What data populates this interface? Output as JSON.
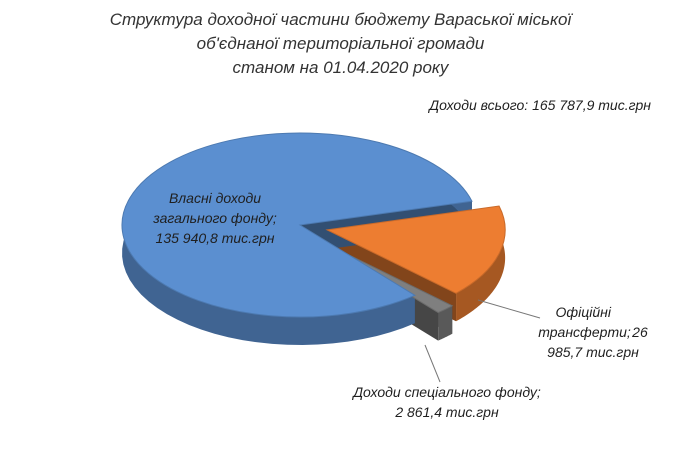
{
  "chart_data": {
    "type": "pie",
    "title": [
      "Структура доходної частини бюджету Вараської міської",
      "об'єднаної територіальної громади",
      "станом на 01.04.2020 року"
    ],
    "subtitle": "Доходи всього: 165 787,9 тис.грн",
    "categories": [
      "Власні доходи загального фонду;",
      "Офіційні трансферти;",
      "Доходи спеціального фонду;"
    ],
    "values": [
      135940.8,
      26985.7,
      2861.4
    ],
    "value_labels": [
      "135 940,8 тис.грн",
      "26 985,7 тис.грн",
      "2 861,4 тис.грн"
    ],
    "colors": [
      "#5b8fd0",
      "#ed7d31",
      "#7f7f7f"
    ]
  }
}
